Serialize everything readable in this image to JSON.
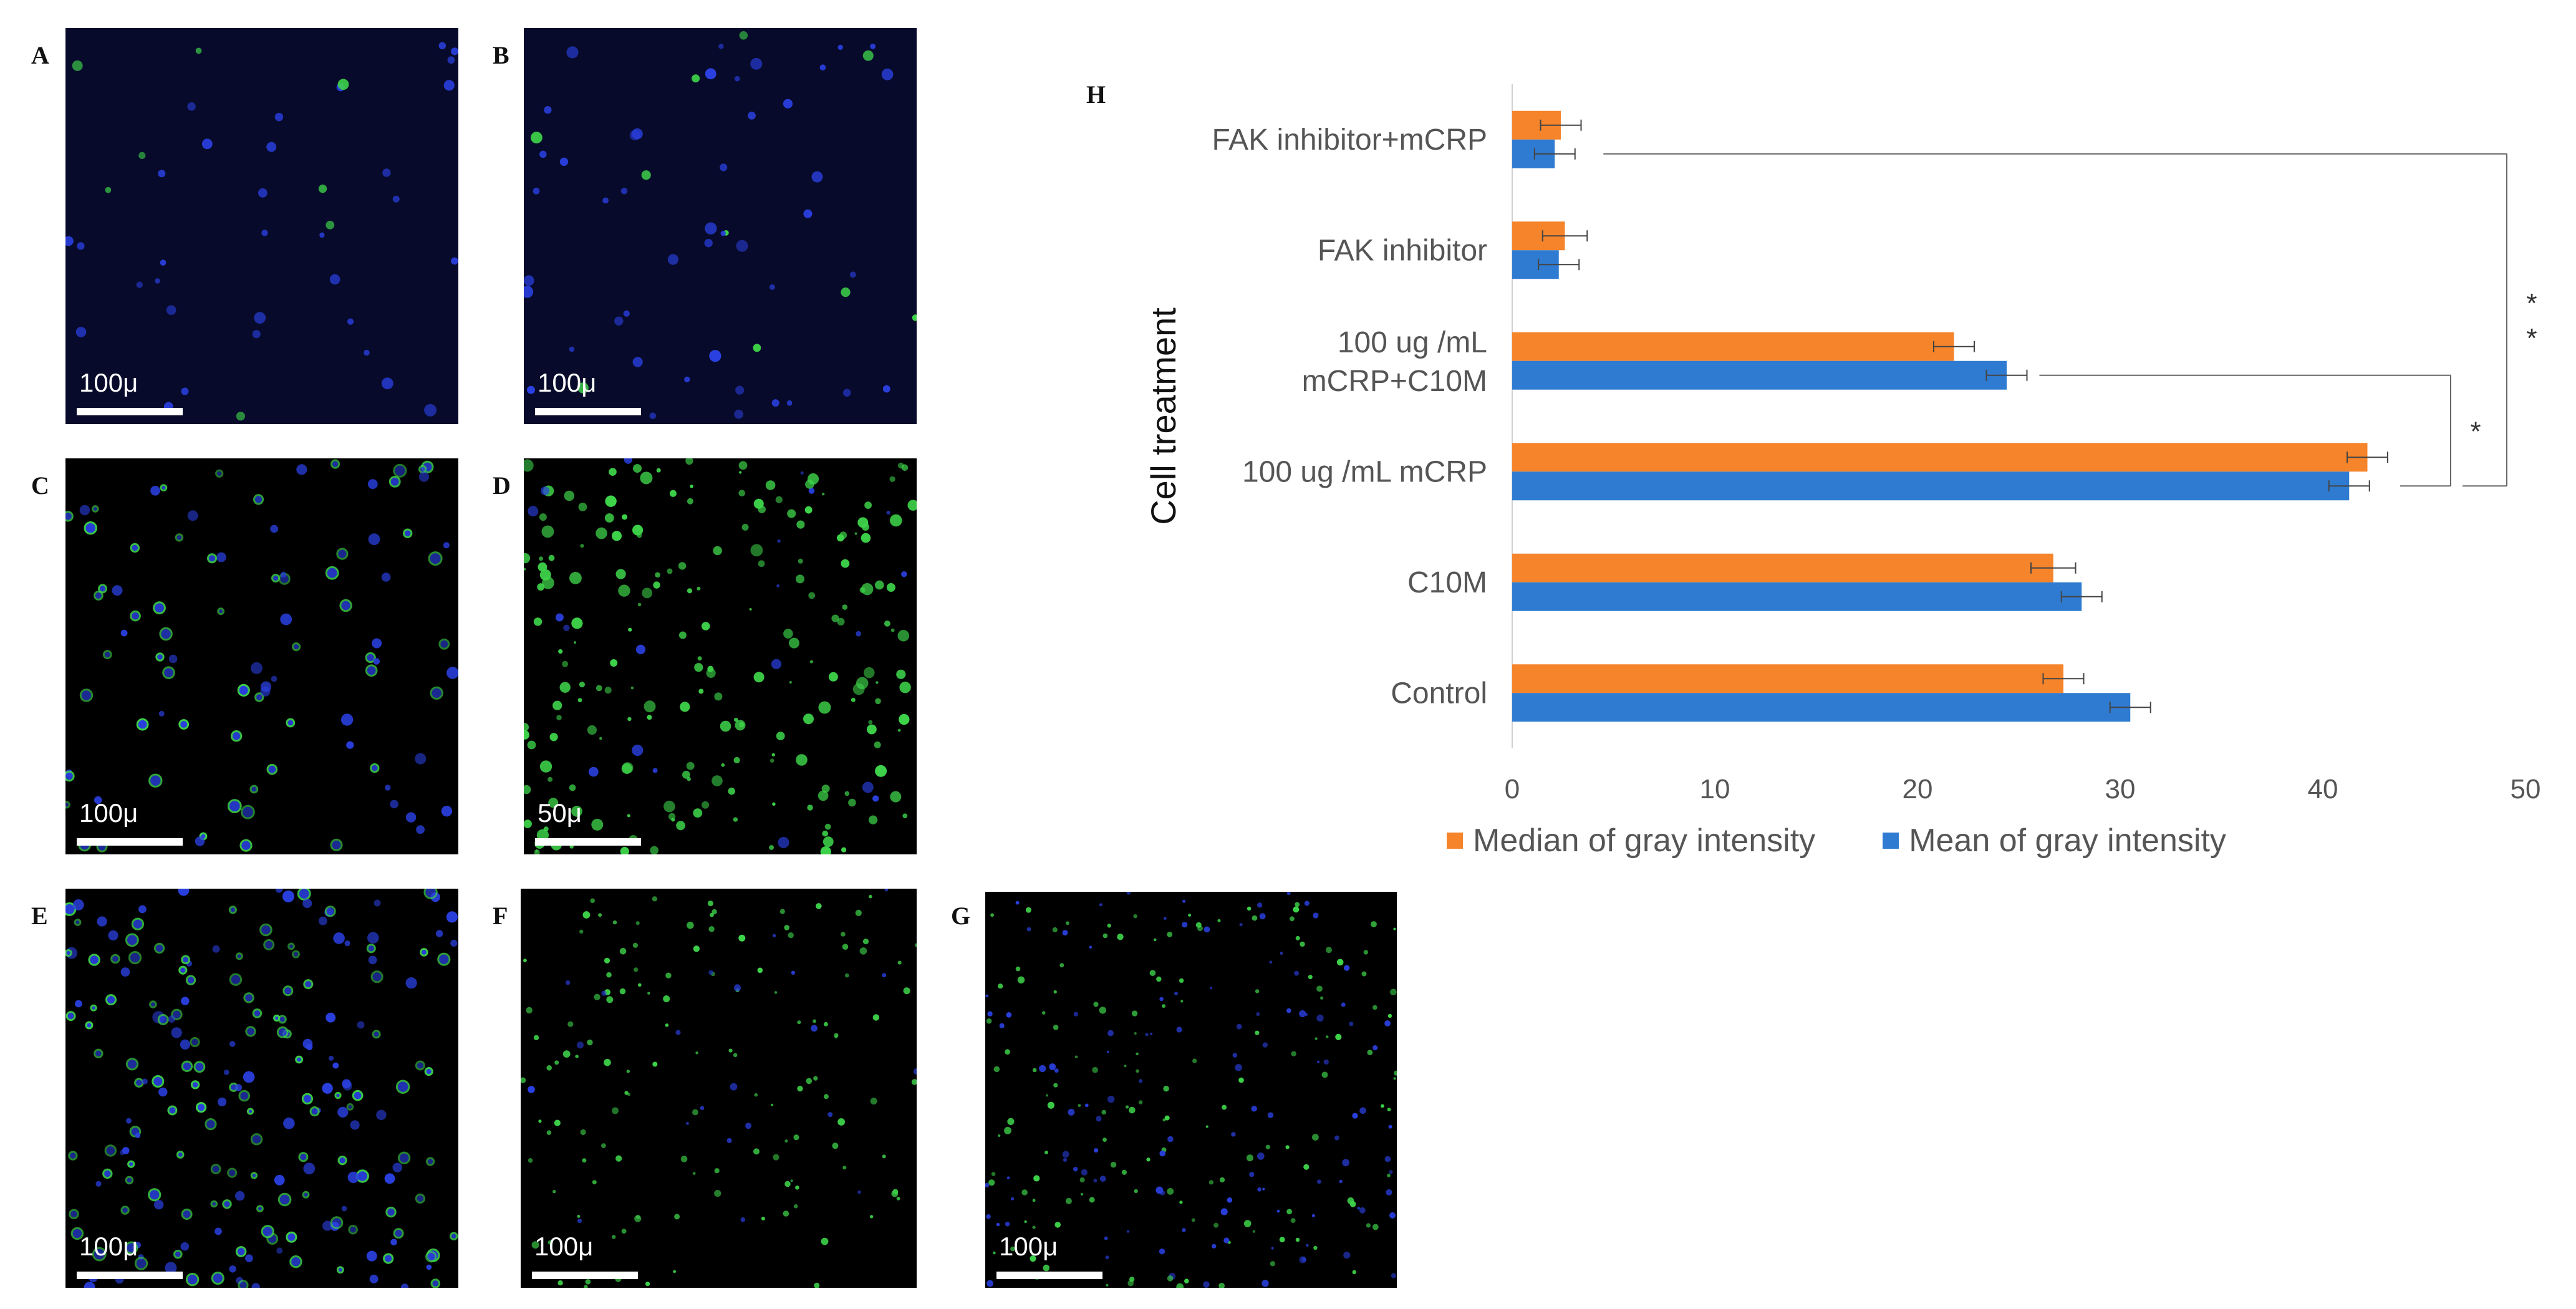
{
  "panels": [
    {
      "letter": "A",
      "scale": "100μ",
      "density": 40,
      "green": 0.15,
      "blue": 0.85,
      "style": "sparse"
    },
    {
      "letter": "B",
      "scale": "100μ",
      "density": 55,
      "green": 0.25,
      "blue": 0.75,
      "style": "sparse"
    },
    {
      "letter": "C",
      "scale": "100μ",
      "density": 90,
      "green": 0.7,
      "blue": 0.3,
      "style": "ring"
    },
    {
      "letter": "D",
      "scale": "50μ",
      "density": 220,
      "green": 0.9,
      "blue": 0.1,
      "style": "spread"
    },
    {
      "letter": "E",
      "scale": "100μ",
      "density": 200,
      "green": 0.6,
      "blue": 0.4,
      "style": "ring"
    },
    {
      "letter": "F",
      "scale": "100μ",
      "density": 150,
      "green": 0.8,
      "blue": 0.2,
      "style": "dots"
    },
    {
      "letter": "G",
      "scale": "100μ",
      "density": 260,
      "green": 0.55,
      "blue": 0.45,
      "style": "dots"
    }
  ],
  "colors": {
    "median": "#F5842B",
    "mean": "#2F7BD1",
    "cell_green": "#3ED44A",
    "cell_blue": "#2A40E0"
  },
  "chart_data": {
    "type": "bar",
    "orientation": "horizontal",
    "panel_letter": "H",
    "categories": [
      "Control",
      "C10M",
      "100 ug /mL mCRP",
      "100 ug /mL\nmCRP+C10M",
      "FAK inhibitor",
      "FAK inhibitor+mCRP"
    ],
    "series": [
      {
        "name": "Median of gray intensity",
        "values": [
          27.2,
          26.7,
          42.2,
          21.8,
          2.6,
          2.4
        ],
        "errors": [
          1.0,
          1.1,
          1.0,
          1.0,
          1.1,
          1.0
        ]
      },
      {
        "name": "Mean of gray intensity",
        "values": [
          30.5,
          28.1,
          41.3,
          24.4,
          2.3,
          2.1
        ],
        "errors": [
          1.0,
          1.0,
          1.0,
          1.0,
          1.0,
          1.0
        ]
      }
    ],
    "xlabel": "",
    "ylabel": "Cell treatment",
    "xlim": [
      0,
      50
    ],
    "xticks": [
      0,
      10,
      20,
      30,
      40,
      50
    ],
    "grid": false,
    "legend": "bottom",
    "annotations": [
      {
        "from": "100 ug /mL mCRP",
        "to": "100 ug /mL\nmCRP+C10M",
        "label": "*"
      },
      {
        "from": "100 ug /mL mCRP",
        "to": "FAK inhibitor+mCRP",
        "label": "* *"
      }
    ]
  }
}
